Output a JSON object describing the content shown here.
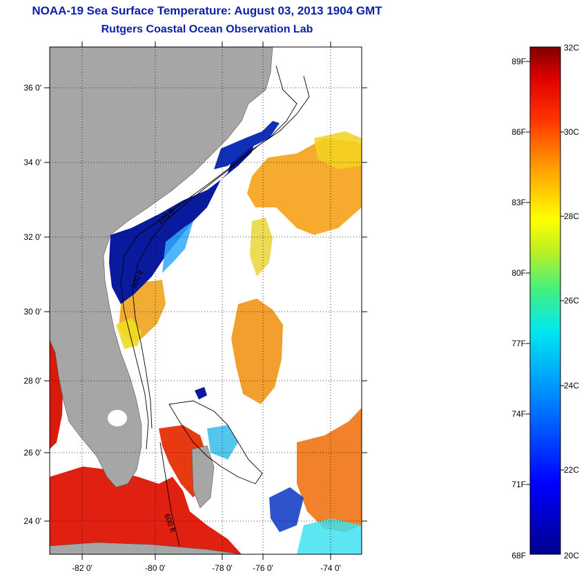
{
  "title": "NOAA-19 Sea Surface Temperature:  August 03, 2013 1904 GMT",
  "subtitle": "Rutgers Coastal Ocean Observation Lab",
  "map": {
    "lat_labels": [
      "36 0'",
      "34 0'",
      "32 0'",
      "30 0'",
      "28 0'",
      "26 0'",
      "24 0'"
    ],
    "lon_labels": [
      "-82 0'",
      "-80 0'",
      "-78 0'",
      "-76 0'",
      "-74 0'"
    ],
    "contour_labels": [
      "120 ft",
      "600 ft",
      "600 ft"
    ],
    "land_color": "#a6a6a6"
  },
  "colorbar": {
    "min_c": 20,
    "max_c": 32,
    "celsius_labels": [
      "32C",
      "30C",
      "28C",
      "26C",
      "24C",
      "22C",
      "20C"
    ],
    "fahrenheit_labels": [
      "89F",
      "86F",
      "83F",
      "80F",
      "77F",
      "74F",
      "71F",
      "68F"
    ]
  }
}
